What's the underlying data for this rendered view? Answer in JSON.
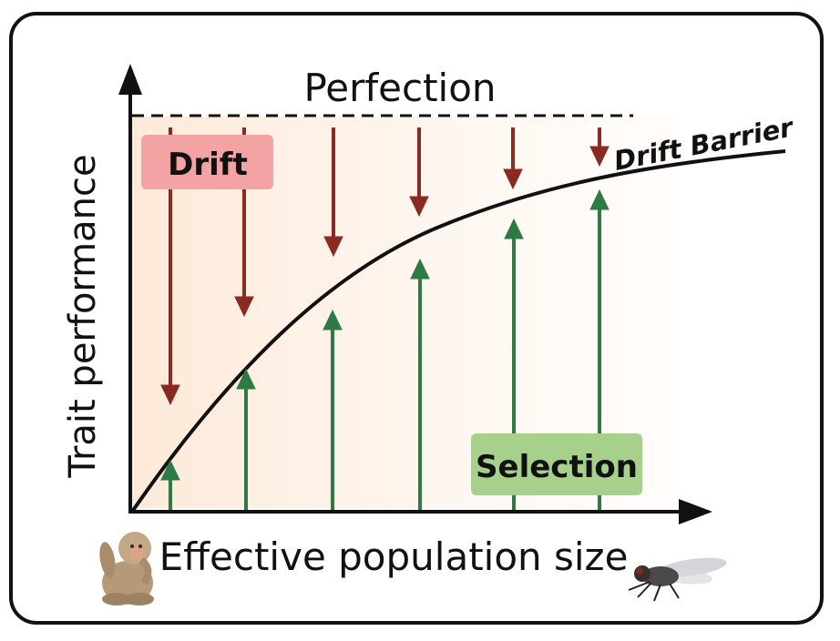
{
  "diagram": {
    "title_top": "Perfection",
    "y_axis_label": "Trait performance",
    "x_axis_label": "Effective population size",
    "curve_label": "Drift Barrier",
    "drift_label": "Drift",
    "selection_label": "Selection"
  },
  "colors": {
    "drift_arrow": "#8b2a22",
    "selection_arrow": "#2e7a44",
    "drift_box": "#f3a3a3",
    "selection_box": "#a8d08d",
    "background_gradient_start": "#fde9d8"
  },
  "icons": {
    "left_image": "monkey-icon",
    "right_image": "fly-icon"
  }
}
